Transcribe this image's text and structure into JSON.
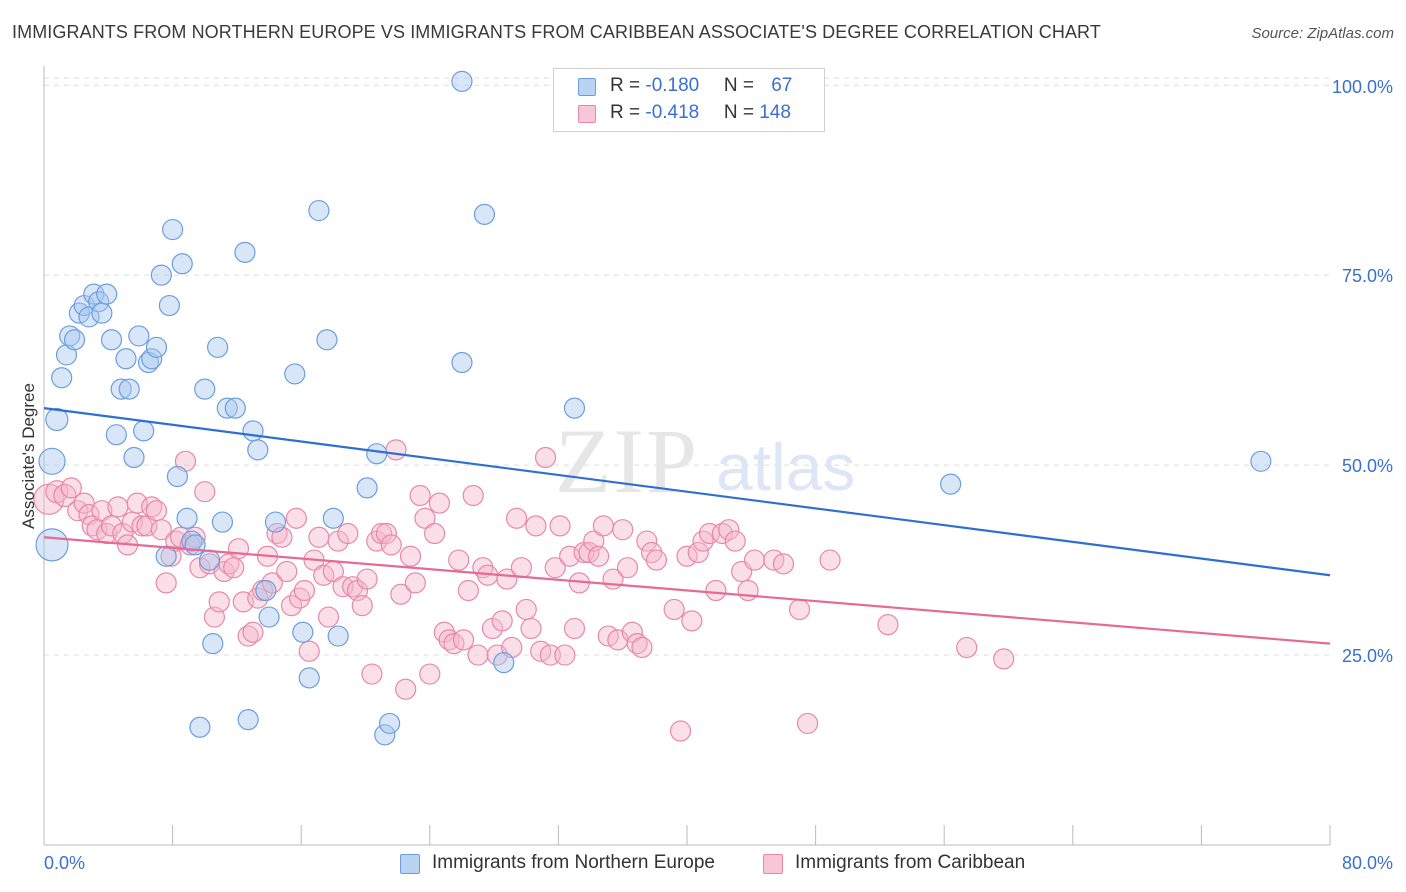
{
  "title": "IMMIGRANTS FROM NORTHERN EUROPE VS IMMIGRANTS FROM CARIBBEAN ASSOCIATE'S DEGREE CORRELATION CHART",
  "source": "Source: ZipAtlas.com",
  "watermark": {
    "zip": "ZIP",
    "atlas": "atlas"
  },
  "legend": {
    "rows": [
      {
        "r_label": "R = ",
        "r_value": "-0.180",
        "n_label": "N = ",
        "n_value": "67"
      },
      {
        "r_label": "R = ",
        "r_value": "-0.418",
        "n_label": "N = ",
        "n_value": "148"
      }
    ]
  },
  "chart_data": {
    "type": "scatter",
    "title": "IMMIGRANTS FROM NORTHERN EUROPE VS IMMIGRANTS FROM CARIBBEAN ASSOCIATE'S DEGREE CORRELATION CHART",
    "xlabel": "",
    "ylabel": "Associate's Degree",
    "xlim": [
      0,
      80
    ],
    "ylim": [
      0,
      102
    ],
    "x_tick_labels": [
      "0.0%",
      "80.0%"
    ],
    "y_ticks": [
      25,
      50,
      75,
      100
    ],
    "y_tick_labels": [
      "25.0%",
      "50.0%",
      "75.0%",
      "100.0%"
    ],
    "grid": true,
    "legend_position": "top-center",
    "colors": {
      "blue_fill": "#a9c8f0",
      "blue_stroke": "#6b9ee0",
      "blue_line": "#2f6fd0",
      "pink_fill": "#f5b9cd",
      "pink_stroke": "#e888a8",
      "pink_line": "#e46b96",
      "tick_label": "#3a6fd0",
      "grid": "#dcdcdc",
      "axis": "#bbbbbb"
    },
    "series": [
      {
        "name": "Immigrants from Northern Europe",
        "color": "blue",
        "trend": {
          "x": [
            0,
            80
          ],
          "y": [
            57.5,
            35.5
          ]
        },
        "points": [
          [
            0.5,
            39.5,
            16
          ],
          [
            0.5,
            50.5,
            13
          ],
          [
            0.8,
            56,
            11
          ],
          [
            1.1,
            61.5,
            10
          ],
          [
            1.4,
            64.5,
            10
          ],
          [
            1.6,
            67,
            10
          ],
          [
            1.9,
            66.5,
            10
          ],
          [
            2.2,
            70,
            10
          ],
          [
            2.5,
            71,
            10
          ],
          [
            2.8,
            69.5,
            10
          ],
          [
            3.1,
            72.5,
            10
          ],
          [
            3.4,
            71.5,
            10
          ],
          [
            3.6,
            70,
            10
          ],
          [
            3.9,
            72.5,
            10
          ],
          [
            4.2,
            66.5,
            10
          ],
          [
            4.5,
            54,
            10
          ],
          [
            4.8,
            60,
            10
          ],
          [
            5.1,
            64,
            10
          ],
          [
            5.3,
            60,
            10
          ],
          [
            5.6,
            51,
            10
          ],
          [
            5.9,
            67,
            10
          ],
          [
            6.2,
            54.5,
            10
          ],
          [
            6.5,
            63.5,
            10
          ],
          [
            6.7,
            64,
            10
          ],
          [
            7.0,
            65.5,
            10
          ],
          [
            7.3,
            75,
            10
          ],
          [
            7.6,
            38,
            10
          ],
          [
            7.8,
            71,
            10
          ],
          [
            8.0,
            81,
            10
          ],
          [
            8.3,
            48.5,
            10
          ],
          [
            8.6,
            76.5,
            10
          ],
          [
            8.9,
            43,
            10
          ],
          [
            9.2,
            40,
            10
          ],
          [
            9.4,
            39.5,
            10
          ],
          [
            9.7,
            15.5,
            10
          ],
          [
            10.0,
            60,
            10
          ],
          [
            10.3,
            37.5,
            10
          ],
          [
            10.5,
            26.5,
            10
          ],
          [
            10.8,
            65.5,
            10
          ],
          [
            11.1,
            42.5,
            10
          ],
          [
            11.4,
            57.5,
            10
          ],
          [
            11.9,
            57.5,
            10
          ],
          [
            12.5,
            78,
            10
          ],
          [
            12.7,
            16.5,
            10
          ],
          [
            13.0,
            54.5,
            10
          ],
          [
            13.3,
            52,
            10
          ],
          [
            13.8,
            33.5,
            10
          ],
          [
            14.0,
            30,
            10
          ],
          [
            14.4,
            42.5,
            10
          ],
          [
            15.6,
            62,
            10
          ],
          [
            16.1,
            28,
            10
          ],
          [
            16.5,
            22,
            10
          ],
          [
            17.1,
            83.5,
            10
          ],
          [
            17.6,
            66.5,
            10
          ],
          [
            18.0,
            43,
            10
          ],
          [
            18.3,
            27.5,
            10
          ],
          [
            20.1,
            47,
            10
          ],
          [
            20.7,
            51.5,
            10
          ],
          [
            21.2,
            14.5,
            10
          ],
          [
            21.5,
            16,
            10
          ],
          [
            26.0,
            100.5,
            10
          ],
          [
            26.0,
            63.5,
            10
          ],
          [
            27.4,
            83,
            10
          ],
          [
            28.6,
            24,
            10
          ],
          [
            33.0,
            57.5,
            10
          ],
          [
            56.4,
            47.5,
            10
          ],
          [
            75.7,
            50.5,
            10
          ]
        ]
      },
      {
        "name": "Immigrants from Caribbean",
        "color": "pink",
        "trend": {
          "x": [
            0,
            80
          ],
          "y": [
            40.5,
            26.5
          ]
        },
        "points": [
          [
            0.3,
            45.5,
            15
          ],
          [
            0.8,
            46.5,
            11
          ],
          [
            1.3,
            46,
            11
          ],
          [
            1.7,
            47,
            10
          ],
          [
            2.1,
            44,
            10
          ],
          [
            2.5,
            45,
            10
          ],
          [
            2.8,
            43.5,
            10
          ],
          [
            3.0,
            42,
            10
          ],
          [
            3.3,
            41.5,
            10
          ],
          [
            3.6,
            44,
            10
          ],
          [
            3.9,
            41,
            10
          ],
          [
            4.2,
            42,
            10
          ],
          [
            4.6,
            44.5,
            10
          ],
          [
            4.9,
            41,
            10
          ],
          [
            5.2,
            39.5,
            10
          ],
          [
            5.5,
            42.5,
            10
          ],
          [
            5.8,
            45,
            10
          ],
          [
            6.1,
            42,
            10
          ],
          [
            6.4,
            42,
            10
          ],
          [
            6.7,
            44.5,
            10
          ],
          [
            7.0,
            44,
            10
          ],
          [
            7.3,
            41.5,
            10
          ],
          [
            7.6,
            34.5,
            10
          ],
          [
            7.9,
            38,
            10
          ],
          [
            8.2,
            40,
            10
          ],
          [
            8.5,
            40.5,
            10
          ],
          [
            8.8,
            50.5,
            10
          ],
          [
            9.1,
            39.5,
            10
          ],
          [
            9.4,
            40.5,
            10
          ],
          [
            9.7,
            36.5,
            10
          ],
          [
            10.0,
            46.5,
            10
          ],
          [
            10.3,
            37,
            10
          ],
          [
            10.6,
            30,
            10
          ],
          [
            10.9,
            32,
            10
          ],
          [
            11.2,
            36,
            10
          ],
          [
            11.5,
            37,
            10
          ],
          [
            11.8,
            36.5,
            10
          ],
          [
            12.1,
            39,
            10
          ],
          [
            12.4,
            32,
            10
          ],
          [
            12.7,
            27.5,
            10
          ],
          [
            13.0,
            28,
            10
          ],
          [
            13.3,
            32.5,
            10
          ],
          [
            13.6,
            33.5,
            10
          ],
          [
            13.9,
            38,
            10
          ],
          [
            14.2,
            34.5,
            10
          ],
          [
            14.5,
            41,
            10
          ],
          [
            14.8,
            40.5,
            10
          ],
          [
            15.1,
            36,
            10
          ],
          [
            15.4,
            31.5,
            10
          ],
          [
            15.7,
            43,
            10
          ],
          [
            15.9,
            32.5,
            10
          ],
          [
            16.2,
            33.5,
            10
          ],
          [
            16.5,
            25.5,
            10
          ],
          [
            16.8,
            37.5,
            10
          ],
          [
            17.1,
            40.5,
            10
          ],
          [
            17.4,
            35.5,
            10
          ],
          [
            17.7,
            30,
            10
          ],
          [
            18.0,
            36,
            10
          ],
          [
            18.3,
            40,
            10
          ],
          [
            18.6,
            34,
            10
          ],
          [
            18.9,
            41,
            10
          ],
          [
            19.2,
            34,
            10
          ],
          [
            19.5,
            33.5,
            10
          ],
          [
            19.8,
            31.5,
            10
          ],
          [
            20.1,
            35,
            10
          ],
          [
            20.4,
            22.5,
            10
          ],
          [
            20.7,
            40,
            10
          ],
          [
            21.0,
            41,
            10
          ],
          [
            21.3,
            41,
            10
          ],
          [
            21.6,
            39.5,
            10
          ],
          [
            21.9,
            52,
            10
          ],
          [
            22.2,
            33,
            10
          ],
          [
            22.5,
            20.5,
            10
          ],
          [
            22.8,
            38,
            10
          ],
          [
            23.1,
            34.5,
            10
          ],
          [
            23.4,
            46,
            10
          ],
          [
            23.7,
            43,
            10
          ],
          [
            24.0,
            22.5,
            10
          ],
          [
            24.3,
            41,
            10
          ],
          [
            24.6,
            45,
            10
          ],
          [
            24.9,
            28,
            10
          ],
          [
            25.2,
            27,
            10
          ],
          [
            25.5,
            26.5,
            10
          ],
          [
            25.8,
            37.5,
            10
          ],
          [
            26.1,
            27,
            10
          ],
          [
            26.4,
            33.5,
            10
          ],
          [
            26.7,
            46,
            10
          ],
          [
            27.0,
            25,
            10
          ],
          [
            27.3,
            36.5,
            10
          ],
          [
            27.6,
            35.5,
            10
          ],
          [
            27.9,
            28.5,
            10
          ],
          [
            28.2,
            25,
            10
          ],
          [
            28.5,
            29.5,
            10
          ],
          [
            28.8,
            35,
            10
          ],
          [
            29.1,
            26,
            10
          ],
          [
            29.4,
            43,
            10
          ],
          [
            29.7,
            36.5,
            10
          ],
          [
            30.0,
            31,
            10
          ],
          [
            30.3,
            28.5,
            10
          ],
          [
            30.6,
            42,
            10
          ],
          [
            30.9,
            25.5,
            10
          ],
          [
            31.2,
            51,
            10
          ],
          [
            31.5,
            25,
            10
          ],
          [
            31.8,
            36.5,
            10
          ],
          [
            32.1,
            42,
            10
          ],
          [
            32.4,
            25,
            10
          ],
          [
            32.7,
            38,
            10
          ],
          [
            33.0,
            28.5,
            10
          ],
          [
            33.3,
            34.5,
            10
          ],
          [
            33.6,
            38.5,
            10
          ],
          [
            33.9,
            38.5,
            10
          ],
          [
            34.2,
            40,
            10
          ],
          [
            34.5,
            38,
            10
          ],
          [
            34.8,
            42,
            10
          ],
          [
            35.1,
            27.5,
            10
          ],
          [
            35.4,
            35,
            10
          ],
          [
            35.7,
            27,
            10
          ],
          [
            36.0,
            41.5,
            10
          ],
          [
            36.3,
            36.5,
            10
          ],
          [
            36.6,
            28,
            10
          ],
          [
            36.9,
            26.5,
            10
          ],
          [
            37.2,
            26,
            10
          ],
          [
            37.5,
            40,
            10
          ],
          [
            37.8,
            38.5,
            10
          ],
          [
            38.1,
            37.5,
            10
          ],
          [
            39.2,
            31,
            10
          ],
          [
            39.6,
            15,
            10
          ],
          [
            40.0,
            38,
            10
          ],
          [
            40.3,
            29.5,
            10
          ],
          [
            40.7,
            38.5,
            10
          ],
          [
            41.0,
            40,
            10
          ],
          [
            41.4,
            41,
            10
          ],
          [
            41.8,
            33.5,
            10
          ],
          [
            42.2,
            41,
            10
          ],
          [
            42.6,
            41.5,
            10
          ],
          [
            43.0,
            40,
            10
          ],
          [
            43.4,
            36,
            10
          ],
          [
            43.8,
            33.5,
            10
          ],
          [
            44.2,
            37.5,
            10
          ],
          [
            45.4,
            37.5,
            10
          ],
          [
            46.0,
            37,
            10
          ],
          [
            47.0,
            31,
            10
          ],
          [
            47.5,
            16,
            10
          ],
          [
            48.9,
            37.5,
            10
          ],
          [
            52.5,
            29,
            10
          ],
          [
            57.4,
            26,
            10
          ],
          [
            59.7,
            24.5,
            10
          ]
        ]
      }
    ]
  },
  "bottom_legend": [
    {
      "label": "Immigrants from Northern Europe"
    },
    {
      "label": "Immigrants from Caribbean"
    }
  ]
}
